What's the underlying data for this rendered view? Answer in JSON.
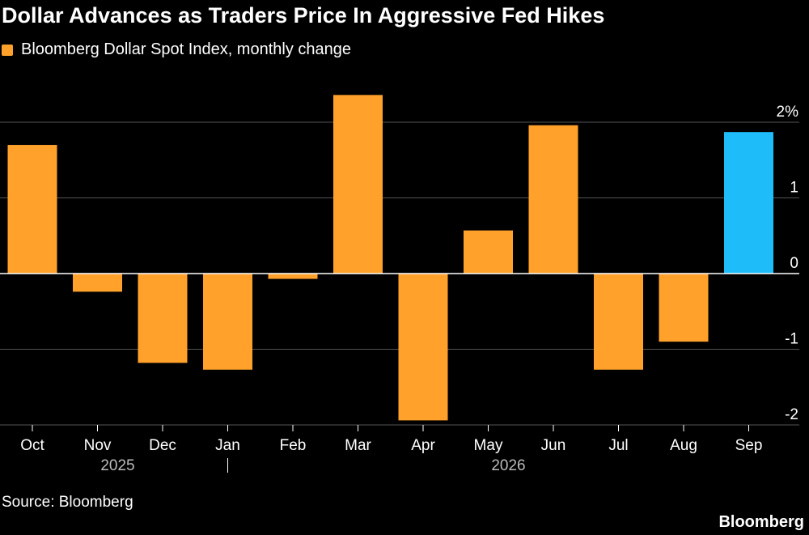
{
  "title": "Dollar Advances as Traders Price In Aggressive Fed Hikes",
  "source": "Source: Bloomberg",
  "brand": "Bloomberg",
  "colors": {
    "positive": "#ffa12b",
    "highlight": "#1ebdfa",
    "background": "#000000",
    "grid": "#555555",
    "text": "#ffffff"
  },
  "chart_data": {
    "type": "bar",
    "legend": "Bloomberg Dollar Spot Index, monthly change",
    "categories": [
      "Oct",
      "Nov",
      "Dec",
      "Jan",
      "Feb",
      "Mar",
      "Apr",
      "May",
      "Jun",
      "Jul",
      "Aug",
      "Sep"
    ],
    "year_labels": [
      {
        "label": "2025",
        "category": "Nov"
      },
      {
        "label": "2026",
        "category": "May"
      }
    ],
    "year_divider_after": "Dec",
    "series": [
      {
        "name": "Bloomberg Dollar Spot Index, monthly change",
        "values": [
          1.7,
          -0.24,
          -1.18,
          -1.27,
          -0.07,
          2.36,
          -1.94,
          0.57,
          1.96,
          -1.27,
          -0.9,
          1.87
        ]
      }
    ],
    "highlight_index": 11,
    "yticks": [
      2,
      1,
      0,
      -1,
      -2
    ],
    "ytick_labels": [
      "2%",
      "1",
      "0",
      "-1",
      "-2"
    ],
    "ylim": [
      -2.0,
      2.4
    ],
    "grid": true,
    "axis_position": "right"
  }
}
